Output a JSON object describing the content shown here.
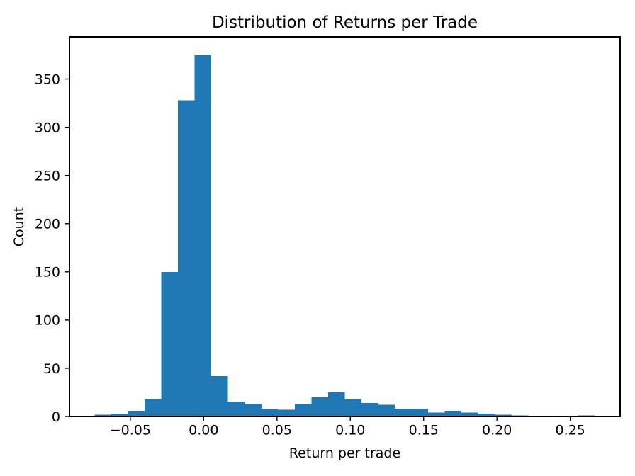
{
  "chart_data": {
    "type": "histogram",
    "title": "Distribution of Returns per Trade",
    "xlabel": "Return per trade",
    "ylabel": "Count",
    "bar_color": "#1f77b4",
    "axis_color": "#000000",
    "background_color": "#ffffff",
    "bin_edges": [
      -0.0744,
      -0.063,
      -0.0517,
      -0.0403,
      -0.0289,
      -0.0175,
      -0.0062,
      0.0052,
      0.0166,
      0.028,
      0.0394,
      0.0507,
      0.0621,
      0.0735,
      0.0848,
      0.0962,
      0.1076,
      0.119,
      0.1303,
      0.1417,
      0.1531,
      0.1645,
      0.1758,
      0.1872,
      0.1986,
      0.21,
      0.2213,
      0.2327,
      0.2441,
      0.2555,
      0.2669
    ],
    "counts": [
      2,
      3,
      6,
      18,
      150,
      328,
      375,
      42,
      15,
      13,
      8,
      7,
      13,
      20,
      25,
      18,
      14,
      12,
      8,
      8,
      4,
      6,
      4,
      3,
      2,
      1,
      0,
      0,
      0,
      1
    ],
    "xlim": [
      -0.0915,
      0.284
    ],
    "ylim": [
      0,
      393.75
    ],
    "xticks": {
      "values": [
        -0.05,
        0.0,
        0.05,
        0.1,
        0.15,
        0.2,
        0.25
      ],
      "labels": [
        "−0.05",
        "0.00",
        "0.05",
        "0.10",
        "0.15",
        "0.20",
        "0.25"
      ]
    },
    "yticks": {
      "values": [
        0,
        50,
        100,
        150,
        200,
        250,
        300,
        350
      ],
      "labels": [
        "0",
        "50",
        "100",
        "150",
        "200",
        "250",
        "300",
        "350"
      ]
    },
    "grid": false,
    "legend_position": "none"
  }
}
